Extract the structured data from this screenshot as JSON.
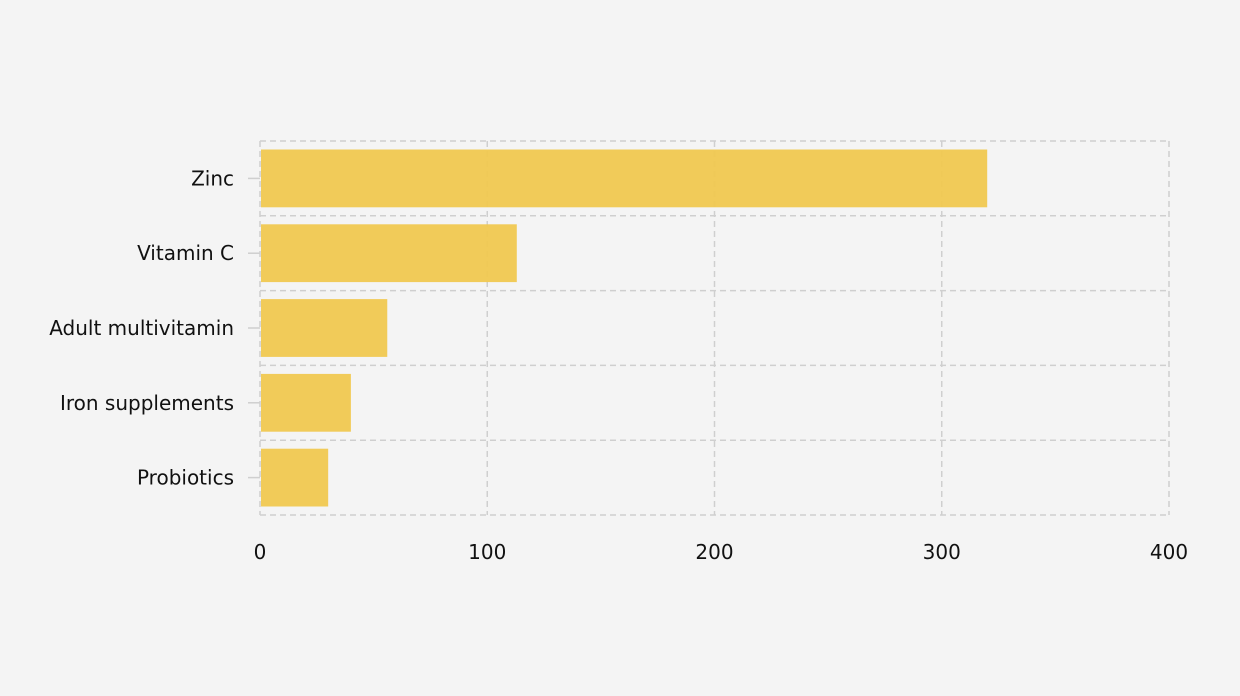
{
  "chart_data": {
    "type": "bar",
    "orientation": "horizontal",
    "categories": [
      "Zinc",
      "Vitamin C",
      "Adult multivitamin",
      "Iron supplements",
      "Probiotics"
    ],
    "values": [
      320,
      113,
      56,
      40,
      30
    ],
    "xlim": [
      0,
      400
    ],
    "xticks": [
      "0",
      "100",
      "200",
      "300",
      "400"
    ],
    "grid": true,
    "bar_color": "#f0c850"
  }
}
